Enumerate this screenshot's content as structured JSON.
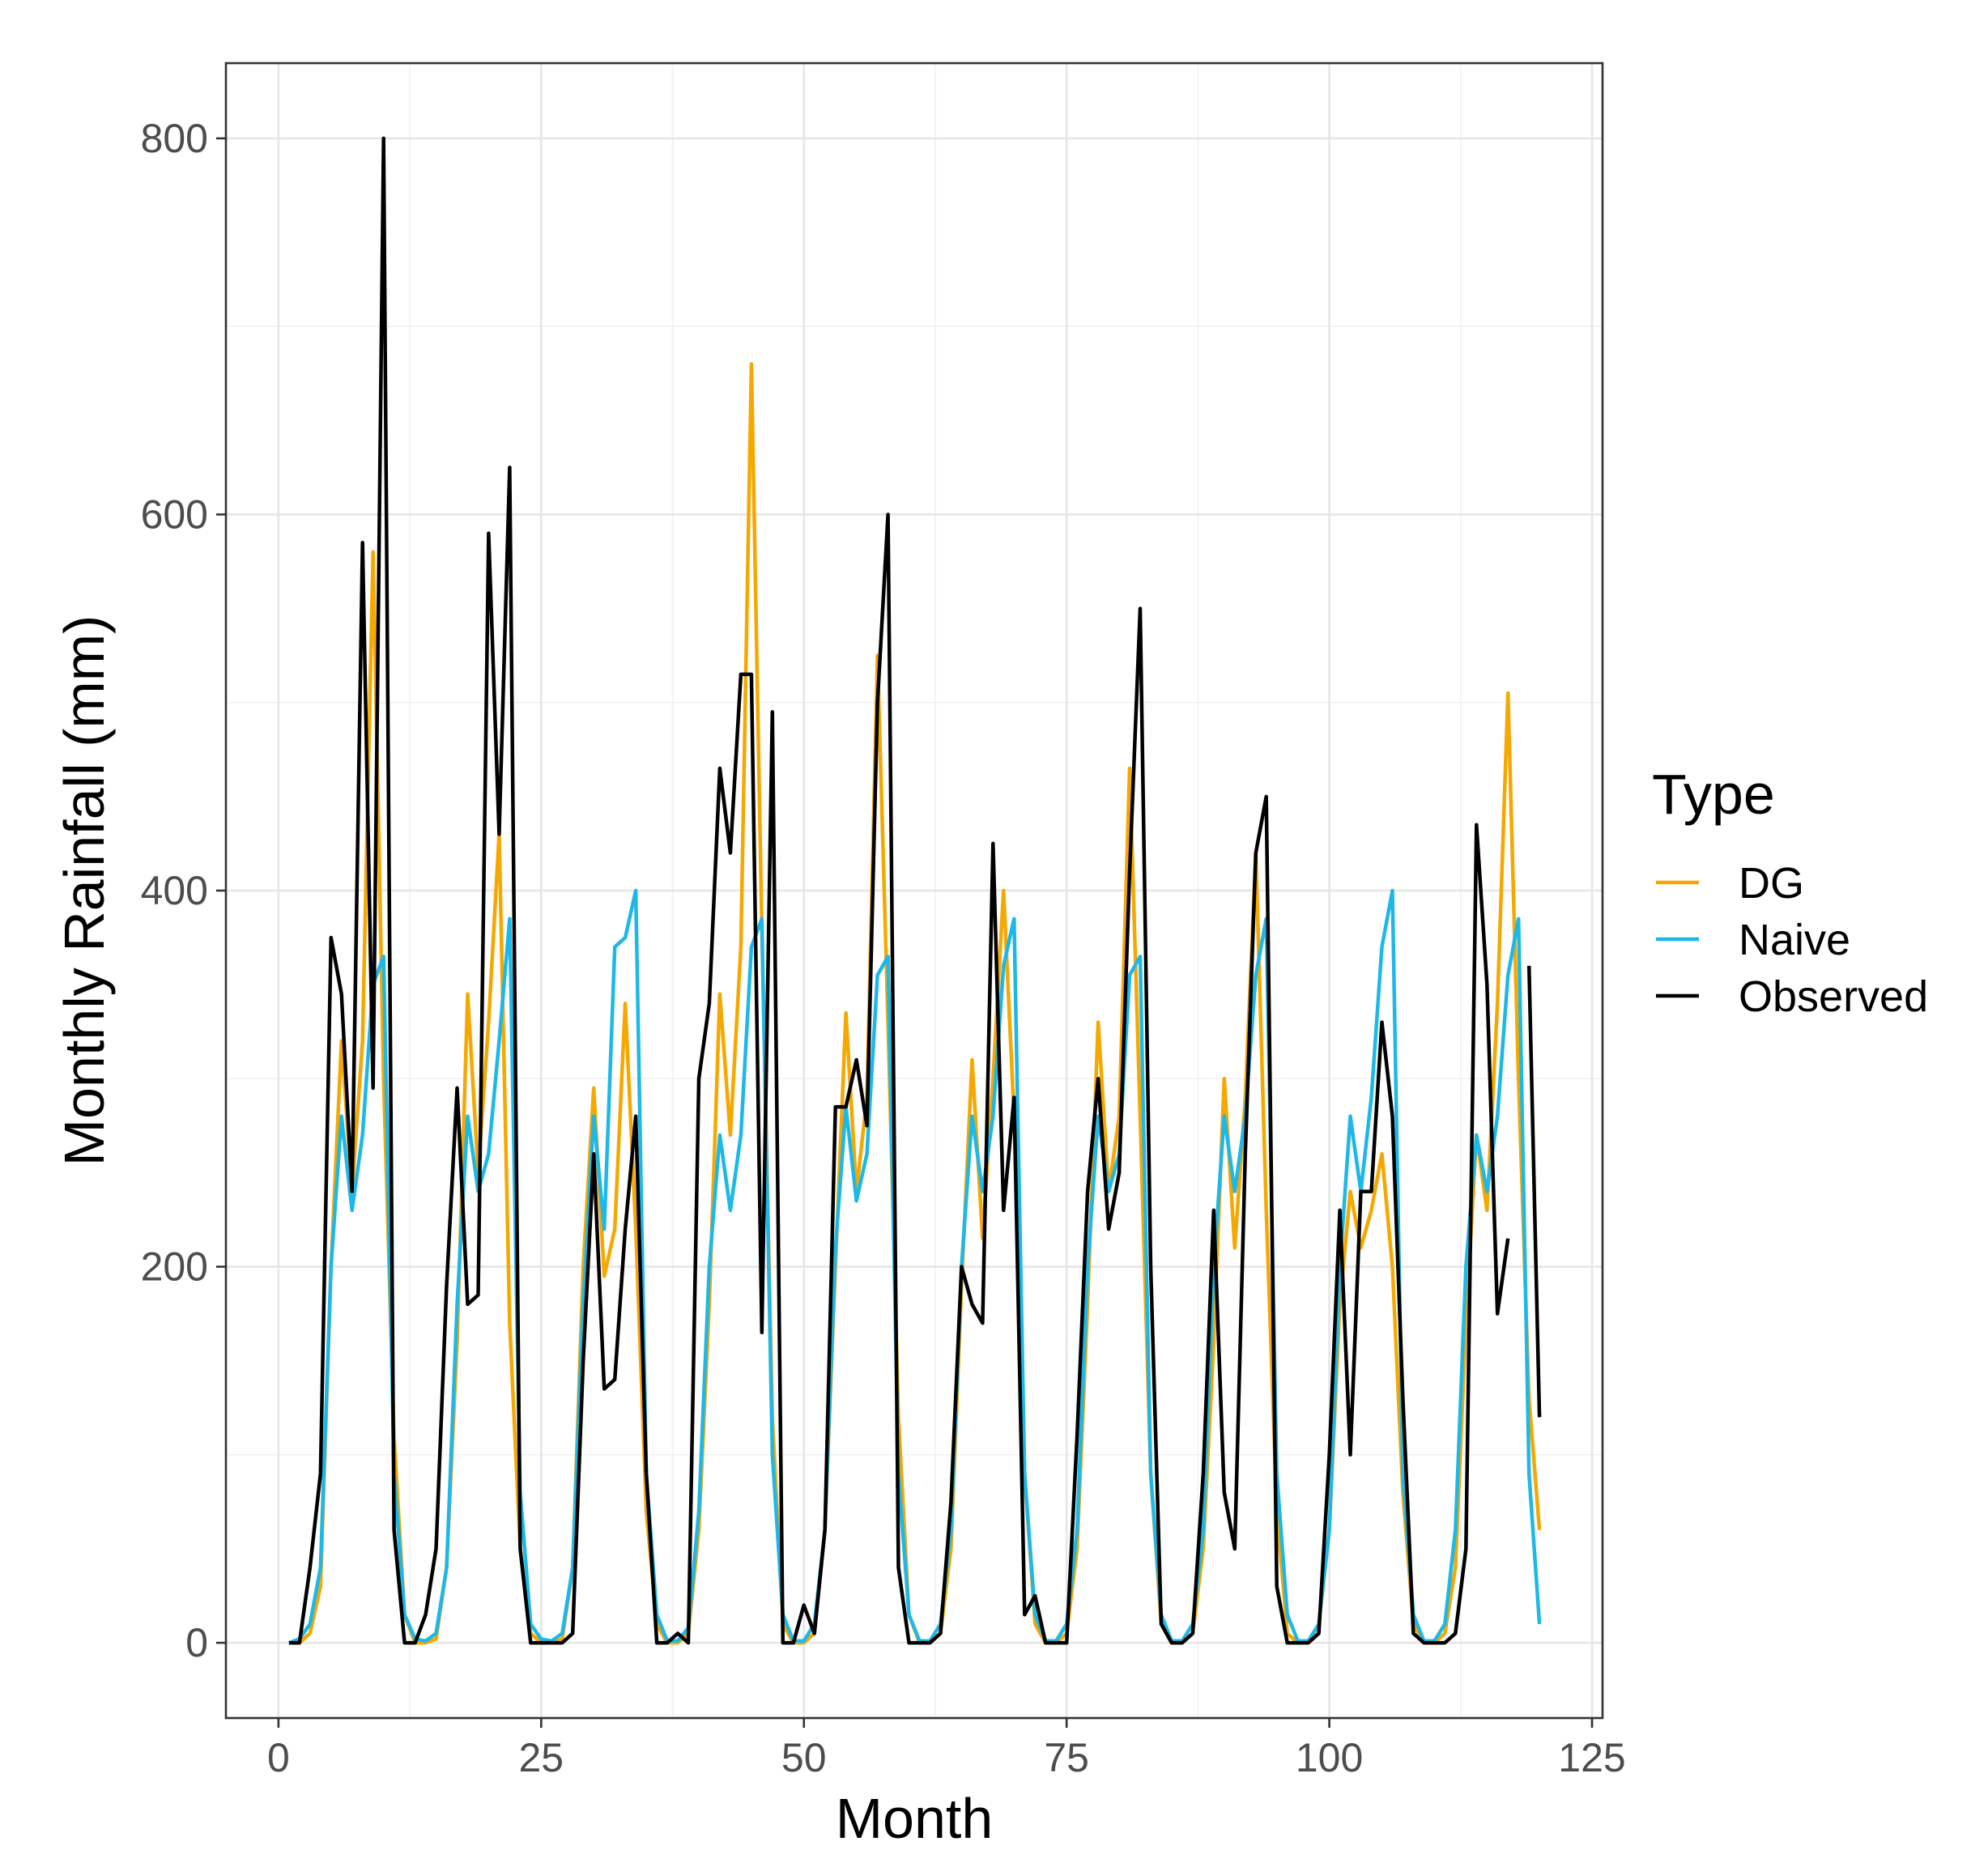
{
  "chart_data": {
    "type": "line",
    "title": "",
    "xlabel": "Month",
    "ylabel": "Monthly Rainfall (mm)",
    "xlim": [
      -5,
      126
    ],
    "ylim": [
      -40,
      840
    ],
    "x_ticks": [
      0,
      25,
      50,
      75,
      100,
      125
    ],
    "y_ticks": [
      0,
      200,
      400,
      600,
      800
    ],
    "x_tick_labels": [
      "0",
      "25",
      "50",
      "75",
      "100",
      "125"
    ],
    "y_tick_labels": [
      "0",
      "200",
      "400",
      "600",
      "800"
    ],
    "grid": true,
    "legend": {
      "title": "Type",
      "position": "right"
    },
    "series": [
      {
        "name": "DG",
        "color": "#F5A800",
        "x": [
          1,
          2,
          3,
          4,
          5,
          6,
          7,
          8,
          9,
          10,
          11,
          12,
          13,
          14,
          15,
          16,
          17,
          18,
          19,
          20,
          21,
          22,
          23,
          24,
          25,
          26,
          27,
          28,
          29,
          30,
          31,
          32,
          33,
          34,
          35,
          36,
          37,
          38,
          39,
          40,
          41,
          42,
          43,
          44,
          45,
          46,
          47,
          48,
          49,
          50,
          51,
          52,
          53,
          54,
          55,
          56,
          57,
          58,
          59,
          60,
          61,
          62,
          63,
          64,
          65,
          66,
          67,
          68,
          69,
          70,
          71,
          72,
          73,
          74,
          75,
          76,
          77,
          78,
          79,
          80,
          81,
          82,
          83,
          84,
          85,
          86,
          87,
          88,
          89,
          90,
          91,
          92,
          93,
          94,
          95,
          96,
          97,
          98,
          99,
          100,
          101,
          102,
          103,
          104,
          105,
          106,
          107,
          108,
          109,
          110,
          111,
          112,
          113,
          114,
          115,
          116,
          117,
          118,
          119,
          120
        ],
        "values": [
          0,
          0,
          5,
          30,
          200,
          320,
          240,
          320,
          580,
          300,
          110,
          15,
          0,
          0,
          2,
          40,
          160,
          345,
          250,
          330,
          430,
          170,
          50,
          5,
          0,
          0,
          2,
          40,
          200,
          295,
          195,
          220,
          340,
          220,
          70,
          10,
          0,
          0,
          5,
          60,
          180,
          345,
          270,
          370,
          680,
          380,
          120,
          10,
          0,
          0,
          5,
          60,
          200,
          335,
          240,
          290,
          525,
          330,
          120,
          15,
          0,
          0,
          5,
          50,
          190,
          310,
          215,
          300,
          400,
          280,
          90,
          10,
          0,
          0,
          5,
          50,
          180,
          330,
          240,
          280,
          465,
          280,
          90,
          10,
          0,
          0,
          5,
          50,
          160,
          300,
          210,
          290,
          420,
          230,
          70,
          5,
          0,
          0,
          10,
          60,
          180,
          240,
          210,
          230,
          260,
          200,
          80,
          10,
          0,
          0,
          5,
          40,
          170,
          270,
          230,
          340,
          505,
          300,
          130,
          60
        ]
      },
      {
        "name": "Naive",
        "color": "#1DB8E8",
        "x": [
          1,
          2,
          3,
          4,
          5,
          6,
          7,
          8,
          9,
          10,
          11,
          12,
          13,
          14,
          15,
          16,
          17,
          18,
          19,
          20,
          21,
          22,
          23,
          24,
          25,
          26,
          27,
          28,
          29,
          30,
          31,
          32,
          33,
          34,
          35,
          36,
          37,
          38,
          39,
          40,
          41,
          42,
          43,
          44,
          45,
          46,
          47,
          48,
          49,
          50,
          51,
          52,
          53,
          54,
          55,
          56,
          57,
          58,
          59,
          60,
          61,
          62,
          63,
          64,
          65,
          66,
          67,
          68,
          69,
          70,
          71,
          72,
          73,
          74,
          75,
          76,
          77,
          78,
          79,
          80,
          81,
          82,
          83,
          84,
          85,
          86,
          87,
          88,
          89,
          90,
          91,
          92,
          93,
          94,
          95,
          96,
          97,
          98,
          99,
          100,
          101,
          102,
          103,
          104,
          105,
          106,
          107,
          108,
          109,
          110,
          111,
          112,
          113,
          114,
          115,
          116,
          117,
          118,
          119,
          120
        ],
        "values": [
          0,
          2,
          10,
          40,
          200,
          280,
          230,
          270,
          350,
          365,
          90,
          15,
          2,
          1,
          5,
          40,
          180,
          280,
          240,
          260,
          320,
          385,
          80,
          10,
          2,
          1,
          5,
          40,
          180,
          280,
          220,
          370,
          375,
          400,
          90,
          15,
          1,
          1,
          8,
          70,
          200,
          270,
          230,
          270,
          370,
          385,
          100,
          15,
          1,
          1,
          10,
          60,
          210,
          285,
          235,
          260,
          355,
          365,
          90,
          15,
          1,
          1,
          10,
          60,
          200,
          280,
          240,
          280,
          360,
          385,
          90,
          15,
          1,
          1,
          10,
          60,
          200,
          280,
          240,
          260,
          355,
          365,
          90,
          15,
          1,
          1,
          10,
          60,
          200,
          280,
          240,
          280,
          355,
          385,
          90,
          15,
          1,
          1,
          10,
          60,
          200,
          280,
          240,
          290,
          370,
          400,
          90,
          15,
          1,
          1,
          10,
          60,
          200,
          270,
          240,
          280,
          355,
          385,
          90,
          10
        ]
      },
      {
        "name": "Observed",
        "color": "#000000",
        "x": [
          1,
          2,
          3,
          4,
          5,
          6,
          7,
          8,
          9,
          10,
          11,
          12,
          13,
          14,
          15,
          16,
          17,
          18,
          19,
          20,
          21,
          22,
          23,
          24,
          25,
          26,
          27,
          28,
          29,
          30,
          31,
          32,
          33,
          34,
          35,
          36,
          37,
          38,
          39,
          40,
          41,
          42,
          43,
          44,
          45,
          46,
          47,
          48,
          49,
          50,
          51,
          52,
          53,
          54,
          55,
          56,
          57,
          58,
          59,
          60,
          61,
          62,
          63,
          64,
          65,
          66,
          67,
          68,
          69,
          70,
          71,
          72,
          73,
          74,
          75,
          76,
          77,
          78,
          79,
          80,
          81,
          82,
          83,
          84,
          85,
          86,
          87,
          88,
          89,
          90,
          91,
          92,
          93,
          94,
          95,
          96,
          97,
          98,
          99,
          100,
          101,
          102,
          103,
          104,
          105,
          106,
          107,
          108,
          109,
          110,
          111,
          112,
          113,
          114,
          115,
          116,
          117,
          118,
          119,
          120
        ],
        "values": [
          0,
          0,
          40,
          90,
          375,
          345,
          240,
          585,
          295,
          800,
          60,
          0,
          0,
          15,
          50,
          190,
          295,
          180,
          185,
          590,
          430,
          625,
          50,
          0,
          0,
          0,
          0,
          5,
          150,
          260,
          135,
          140,
          220,
          280,
          90,
          0,
          0,
          5,
          0,
          300,
          340,
          465,
          420,
          515,
          515,
          165,
          495,
          0,
          0,
          20,
          5,
          60,
          285,
          285,
          310,
          275,
          500,
          600,
          40,
          0,
          0,
          0,
          5,
          75,
          200,
          180,
          170,
          425,
          230,
          290,
          15,
          25,
          0,
          0,
          0,
          110,
          240,
          300,
          220,
          250,
          410,
          550,
          200,
          10,
          0,
          0,
          5,
          90,
          230,
          80,
          50,
          260,
          420,
          450,
          30,
          0,
          0,
          0,
          5,
          100,
          230,
          100,
          240,
          240,
          330,
          280,
          130,
          5,
          0,
          0,
          0,
          5,
          50,
          435,
          350,
          175,
          215,
          null,
          360,
          120
        ]
      }
    ]
  }
}
